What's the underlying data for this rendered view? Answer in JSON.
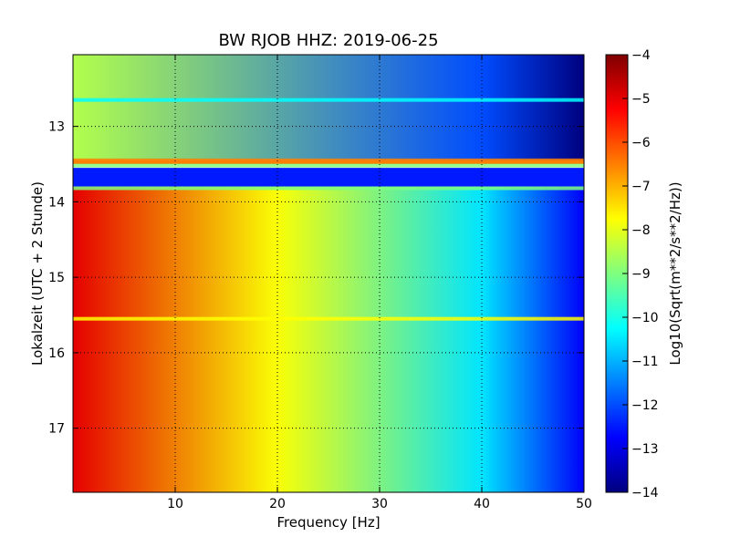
{
  "chart_data": {
    "type": "heatmap",
    "title": "BW RJOB HHZ: 2019-06-25",
    "xlabel": "Frequency [Hz]",
    "ylabel": "Lokalzeit (UTC + 2 Stunde)",
    "xlim": [
      0,
      50
    ],
    "ylim": [
      17.85,
      12.05
    ],
    "x_ticks": [
      10,
      20,
      30,
      40,
      50
    ],
    "y_ticks": [
      13,
      14,
      15,
      16,
      17
    ],
    "grid": true,
    "colormap": "jet",
    "colorbar": {
      "label": "Log10(Sqrt(m**2/s**2/Hz))",
      "range": [
        -14,
        -4
      ],
      "ticks": [
        -4,
        -5,
        -6,
        -7,
        -8,
        -9,
        -10,
        -11,
        -12,
        -13,
        -14
      ]
    },
    "regions": [
      {
        "time_start": 12.05,
        "time_end": 13.45,
        "value_at_0Hz": -8.5,
        "value_at_40Hz": -12.0,
        "value_at_50Hz": -14.0
      },
      {
        "time_start": 13.45,
        "time_end": 13.5,
        "value": -6.5,
        "note_source": "horizontal band"
      },
      {
        "time_start": 13.55,
        "time_end": 13.8,
        "value": -12.5
      },
      {
        "time_start": 13.8,
        "time_end": 17.85,
        "value_at_0Hz": -5.0,
        "value_at_20Hz": -7.8,
        "value_at_40Hz": -10.5,
        "value_at_50Hz": -12.8
      }
    ],
    "bands": [
      {
        "time": 12.65,
        "value": -10.5
      },
      {
        "time": 13.45,
        "value": -6.5
      },
      {
        "time": 13.52,
        "value": -9.0
      },
      {
        "time": 13.82,
        "value": -9.0
      },
      {
        "time": 15.55,
        "value": -8.0
      }
    ]
  },
  "colors": {
    "jet": [
      "#00007f",
      "#0000ff",
      "#007fff",
      "#00ffff",
      "#7fff7f",
      "#ffff00",
      "#ff7f00",
      "#ff0000",
      "#7f0000"
    ]
  }
}
